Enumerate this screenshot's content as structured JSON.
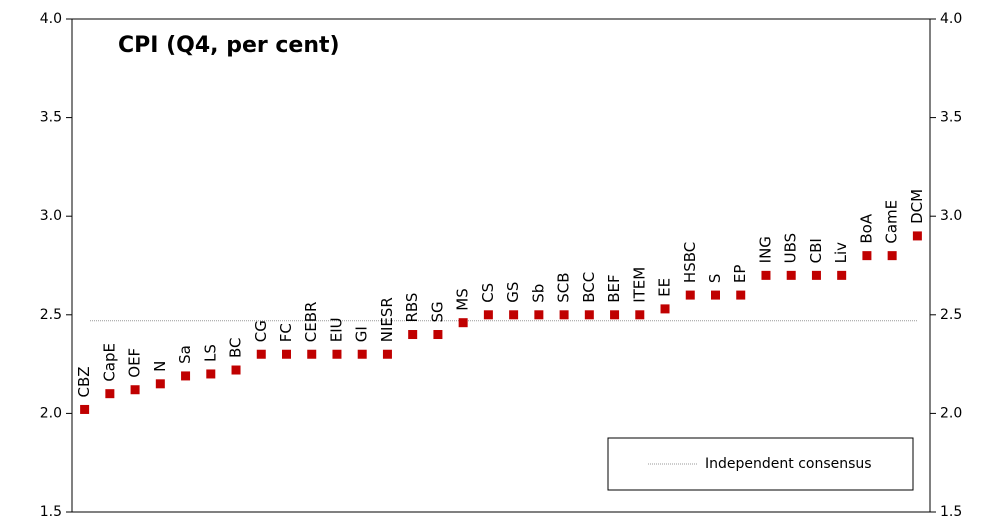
{
  "chart_data": {
    "type": "dot",
    "title": "CPI (Q4, per cent)",
    "categories": [
      "CBZ",
      "CapE",
      "OEF",
      "N",
      "Sa",
      "LS",
      "BC",
      "CG",
      "FC",
      "CEBR",
      "EIU",
      "GI",
      "NIESR",
      "RBS",
      "SG",
      "MS",
      "CS",
      "GS",
      "Sb",
      "SCB",
      "BCC",
      "BEF",
      "ITEM",
      "EE",
      "HSBC",
      "S",
      "EP",
      "ING",
      "UBS",
      "CBI",
      "Liv",
      "BoA",
      "CamE",
      "DCM"
    ],
    "values": [
      2.02,
      2.1,
      2.12,
      2.15,
      2.19,
      2.2,
      2.22,
      2.3,
      2.3,
      2.3,
      2.3,
      2.3,
      2.3,
      2.4,
      2.4,
      2.46,
      2.5,
      2.5,
      2.5,
      2.5,
      2.5,
      2.5,
      2.5,
      2.53,
      2.6,
      2.6,
      2.6,
      2.7,
      2.7,
      2.7,
      2.7,
      2.8,
      2.8,
      2.9
    ],
    "color": "#c00000",
    "reference_line": {
      "name": "Independent consensus",
      "value": 2.47,
      "color": "#999999"
    },
    "ylim": [
      1.5,
      4.0
    ],
    "yticks": [
      {
        "value": 1.5,
        "label": "1.5"
      },
      {
        "value": 2.0,
        "label": "2.0"
      },
      {
        "value": 2.5,
        "label": "2.5"
      },
      {
        "value": 3.0,
        "label": "3.0"
      },
      {
        "value": 3.5,
        "label": "3.5"
      },
      {
        "value": 4.0,
        "label": "4.0"
      }
    ],
    "y2lim": [
      1.5,
      4.0
    ],
    "y2ticks": [
      {
        "value": 1.5,
        "label": "1.5"
      },
      {
        "value": 2.0,
        "label": "2.0"
      },
      {
        "value": 2.5,
        "label": "2.5"
      },
      {
        "value": 3.0,
        "label": "3.0"
      },
      {
        "value": 3.5,
        "label": "3.5"
      },
      {
        "value": 4.0,
        "label": "4.0"
      }
    ],
    "legend": "lower right"
  }
}
